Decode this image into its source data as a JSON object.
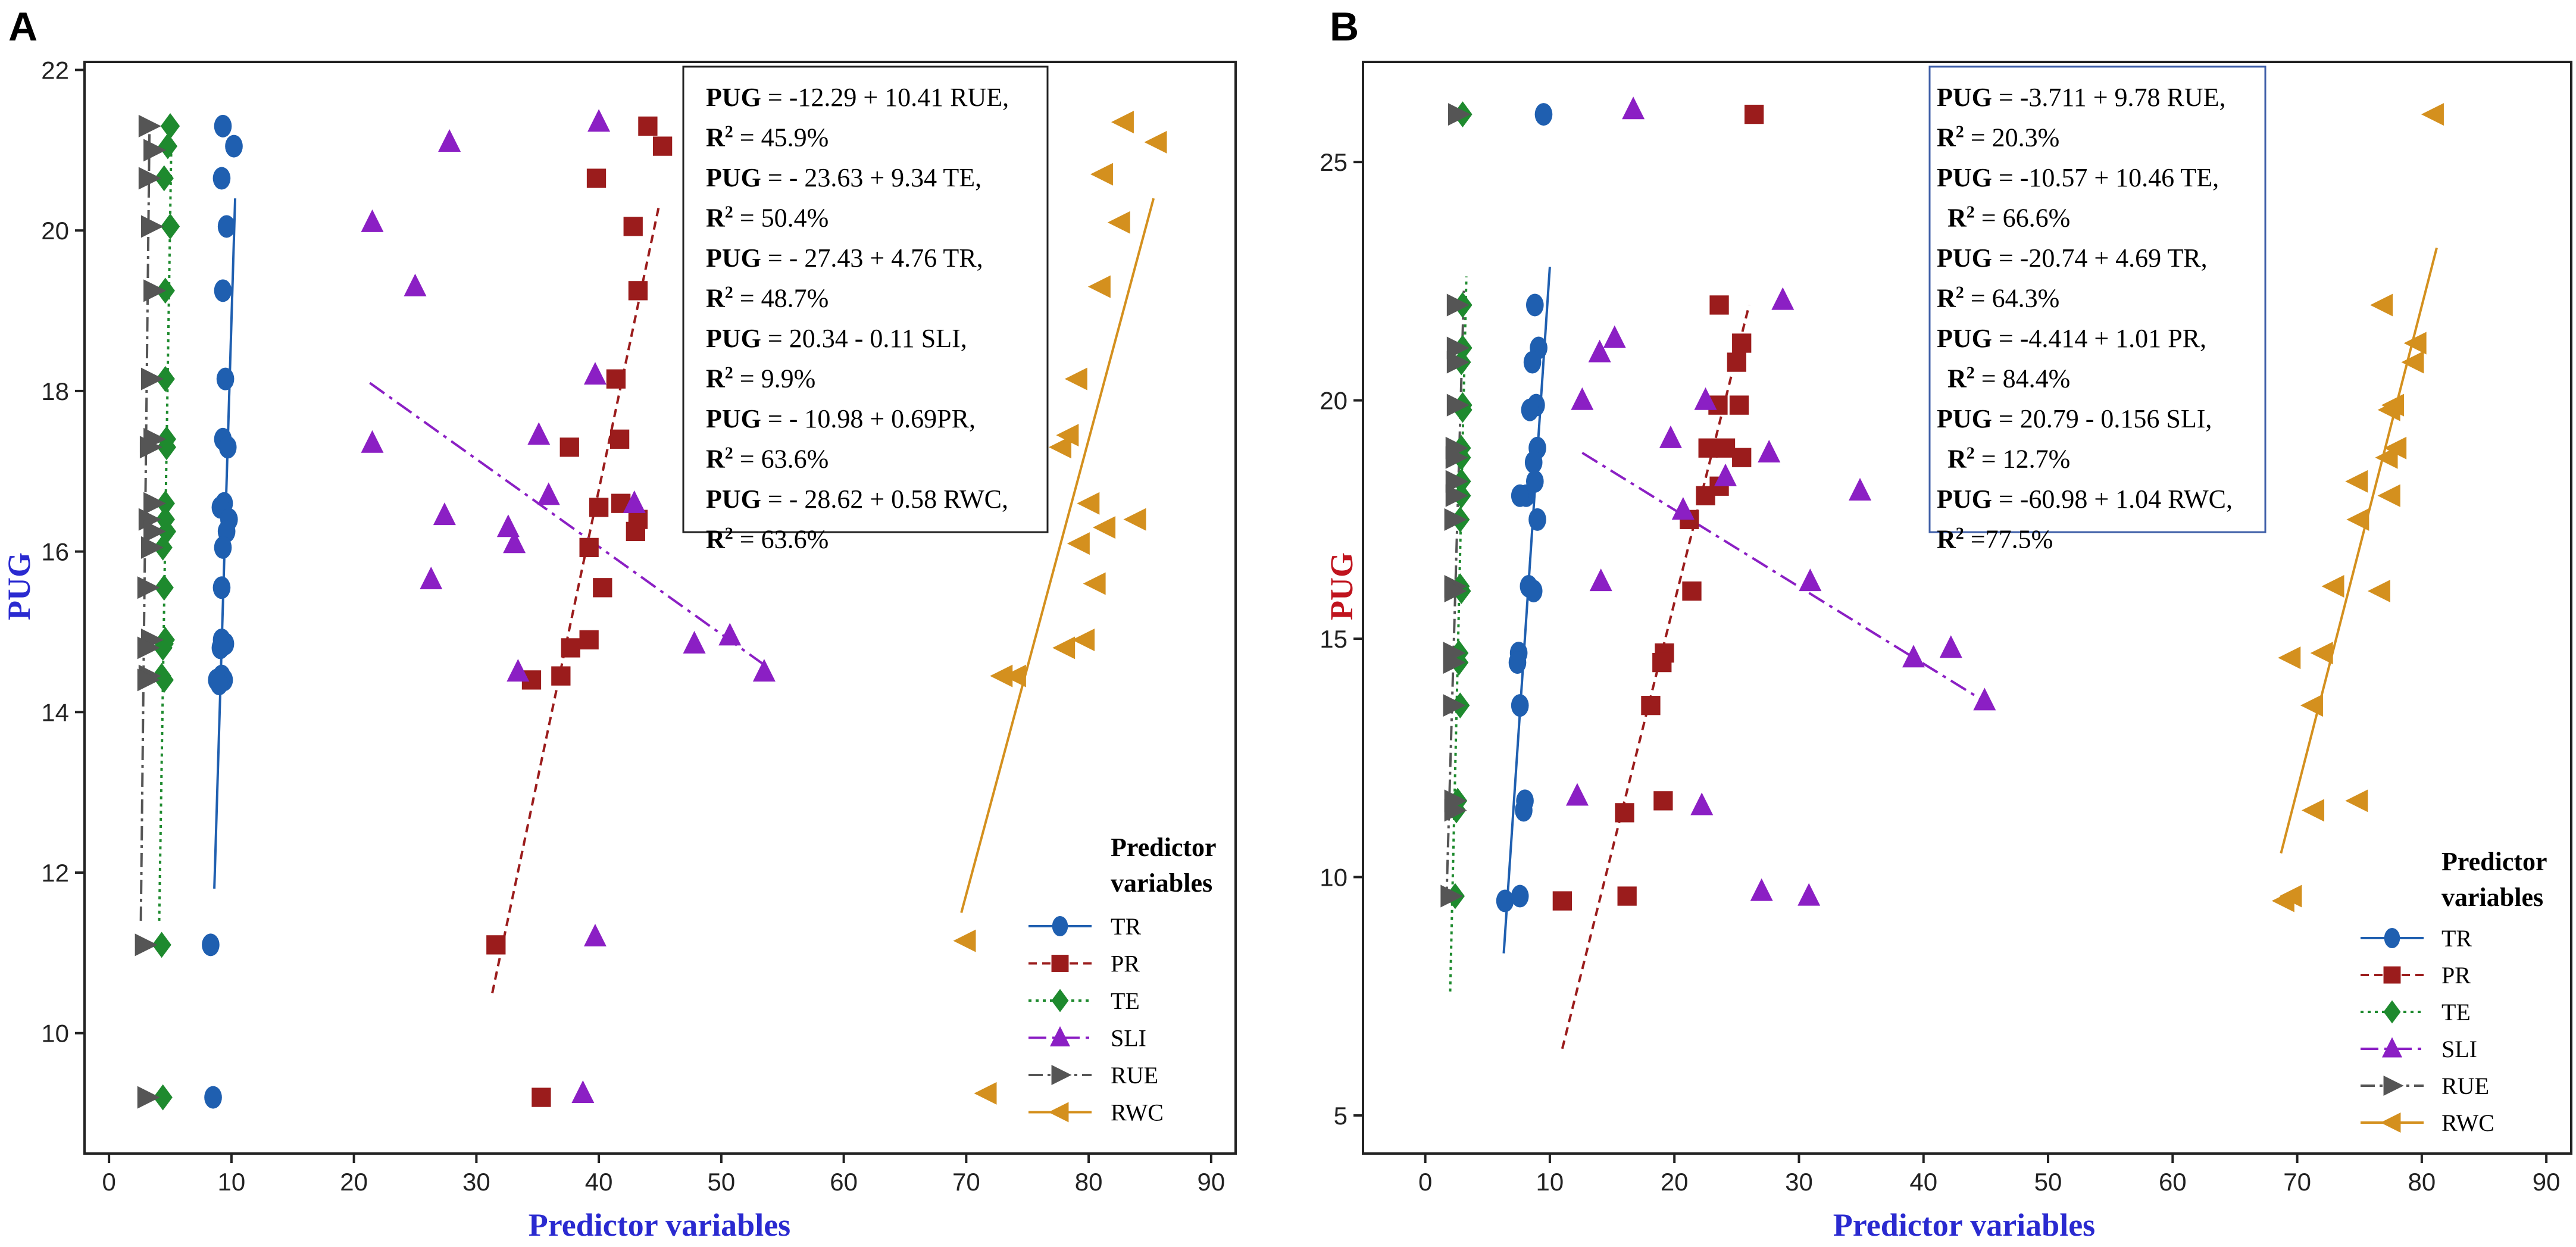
{
  "colors": {
    "TR": "#1f5fb0",
    "PR": "#9b1c1c",
    "TE": "#1e8a2e",
    "SLI": "#8b1fc4",
    "RUE": "#555555",
    "RWC": "#d4901e",
    "axis_title_blue": "#2a2ad0",
    "ylabel_red": "#c0141e",
    "eqbox_border_B": "#3f5fa8"
  },
  "chart_data": [
    {
      "panel": "A",
      "type": "scatter",
      "xlabel": "Predictor variables",
      "ylabel": "PUG",
      "xlim": [
        -2,
        92
      ],
      "ylim": [
        8.5,
        22.1
      ],
      "x_ticks": [
        0,
        10,
        20,
        30,
        40,
        50,
        60,
        70,
        80,
        90
      ],
      "y_ticks": [
        10,
        12,
        14,
        16,
        18,
        20,
        22
      ],
      "equations": [
        {
          "bold": "PUG",
          "rest": " = -12.29 + 10.41 RUE,",
          "r2": " = 45.9%"
        },
        {
          "bold": "PUG",
          "rest": " = - 23.63 + 9.34 TE,",
          "r2": " = 50.4%"
        },
        {
          "bold": "PUG",
          "rest": " = - 27.43 + 4.76 TR,",
          "r2": " = 48.7%"
        },
        {
          "bold": "PUG",
          "rest": " = 20.34 - 0.11 SLI,",
          "r2": " = 9.9%"
        },
        {
          "bold": "PUG",
          "rest": " = - 10.98 + 0.69PR,",
          "r2": " = 63.6%"
        },
        {
          "bold": "PUG",
          "rest": " = - 28.62 + 0.58 RWC,",
          "r2": " = 63.6%"
        }
      ],
      "legend_title": [
        "Predictor",
        "variables"
      ],
      "series": [
        {
          "name": "TR",
          "marker": "circle",
          "dash": "",
          "x": [
            9.3,
            10.2,
            9.2,
            9.6,
            9.3,
            9.5,
            9.3,
            9.7,
            9.4,
            9.1,
            9.8,
            9.6,
            9.3,
            9.2,
            9.2,
            9.5,
            9.1,
            9.4,
            9.2,
            8.8,
            9.0,
            8.3,
            8.5
          ],
          "y": [
            21.3,
            21.05,
            20.65,
            20.05,
            19.25,
            18.15,
            17.4,
            17.3,
            16.6,
            16.55,
            16.4,
            16.25,
            16.05,
            15.55,
            14.9,
            14.85,
            14.8,
            14.4,
            14.45,
            14.4,
            14.35,
            11.1,
            9.2
          ],
          "fit": [
            [
              8.6,
              11.8
            ],
            [
              10.3,
              20.4
            ]
          ]
        },
        {
          "name": "PR",
          "marker": "square",
          "dash": "14 9",
          "x": [
            44.0,
            45.2,
            39.8,
            42.8,
            43.2,
            41.4,
            37.6,
            41.7,
            41.8,
            43.0,
            43.2,
            40.0,
            39.2,
            40.3,
            37.7,
            39.2,
            34.5,
            36.9,
            31.6,
            35.3
          ],
          "y": [
            21.3,
            21.05,
            20.65,
            20.05,
            19.25,
            18.15,
            17.3,
            17.4,
            16.6,
            16.25,
            16.4,
            16.55,
            16.05,
            15.55,
            14.8,
            14.9,
            14.4,
            14.45,
            11.1,
            9.2
          ],
          "fit": [
            [
              31.3,
              10.5
            ],
            [
              44.9,
              20.3
            ]
          ]
        },
        {
          "name": "TE",
          "marker": "diamond",
          "dash": "5 7",
          "x": [
            5.0,
            4.8,
            4.5,
            5.0,
            4.6,
            4.6,
            4.7,
            4.7,
            4.6,
            4.6,
            4.7,
            4.4,
            4.5,
            4.6,
            4.5,
            4.4,
            4.5,
            4.3,
            4.3,
            4.4
          ],
          "y": [
            21.3,
            21.05,
            20.65,
            20.05,
            19.25,
            18.15,
            17.4,
            17.3,
            16.6,
            16.4,
            16.25,
            16.05,
            15.55,
            14.9,
            14.85,
            14.8,
            14.4,
            14.45,
            11.1,
            9.2
          ],
          "fit": [
            [
              4.1,
              11.4
            ],
            [
              5.1,
              21.2
            ]
          ]
        },
        {
          "name": "SLI",
          "marker": "triangle-up",
          "dash": "30 10 6 10",
          "x": [
            40.0,
            27.8,
            21.5,
            25.0,
            39.7,
            21.5,
            35.1,
            27.4,
            35.9,
            32.6,
            42.9,
            33.1,
            26.3,
            53.5,
            50.7,
            47.8,
            33.4,
            39.7,
            38.7
          ],
          "y": [
            21.35,
            21.1,
            20.1,
            19.3,
            18.2,
            17.35,
            17.45,
            16.45,
            16.7,
            16.3,
            16.6,
            16.1,
            15.65,
            14.5,
            14.95,
            14.85,
            14.5,
            11.2,
            9.25
          ],
          "fit": [
            [
              21.3,
              18.1
            ],
            [
              53.4,
              14.6
            ]
          ]
        },
        {
          "name": "RUE",
          "marker": "triangle-right",
          "dash": "24 8 5 8",
          "x": [
            3.2,
            3.6,
            3.2,
            3.4,
            3.6,
            3.4,
            3.6,
            3.3,
            3.6,
            3.2,
            3.6,
            3.4,
            3.1,
            3.4,
            3.1,
            3.2,
            3.1,
            2.9,
            3.1
          ],
          "y": [
            21.3,
            21.0,
            20.65,
            20.05,
            19.25,
            18.15,
            17.4,
            17.3,
            16.6,
            16.4,
            16.25,
            16.05,
            15.55,
            14.9,
            14.8,
            14.45,
            14.4,
            11.1,
            9.2
          ],
          "fit": [
            [
              2.6,
              11.4
            ],
            [
              3.3,
              21.2
            ]
          ]
        },
        {
          "name": "RWC",
          "marker": "triangle-left",
          "dash": "",
          "x": [
            82.9,
            85.6,
            81.2,
            82.6,
            81.0,
            79.1,
            78.4,
            77.8,
            80.1,
            83.9,
            81.4,
            79.3,
            80.6,
            79.7,
            78.1,
            74.1,
            73.0,
            70.0,
            71.7
          ],
          "y": [
            21.35,
            21.1,
            20.7,
            20.1,
            19.3,
            18.15,
            17.45,
            17.3,
            16.6,
            16.4,
            16.3,
            16.1,
            15.6,
            14.9,
            14.8,
            14.45,
            14.45,
            11.15,
            9.25
          ],
          "fit": [
            [
              69.6,
              11.5
            ],
            [
              85.3,
              20.4
            ]
          ]
        }
      ]
    },
    {
      "panel": "B",
      "type": "scatter",
      "xlabel": "Predictor variables",
      "ylabel": "PUG",
      "xlim": [
        -5,
        92
      ],
      "ylim": [
        4.2,
        27.1
      ],
      "x_ticks": [
        0,
        10,
        20,
        30,
        40,
        50,
        60,
        70,
        80,
        90
      ],
      "y_ticks": [
        5,
        10,
        15,
        20,
        25
      ],
      "equations": [
        {
          "bold": "PUG",
          "rest": " = -3.711 + 9.78 RUE,",
          "r2": " = 20.3%"
        },
        {
          "bold": "PUG",
          "rest": " = -10.57 + 10.46 TE,",
          "r2": " = 66.6%"
        },
        {
          "bold": "PUG",
          "rest": " = -20.74 + 4.69 TR,",
          "r2": " = 64.3%"
        },
        {
          "bold": "PUG",
          "rest": " = -4.414 + 1.01 PR,",
          "r2": " = 84.4%"
        },
        {
          "bold": "PUG",
          "rest": " = 20.79 - 0.156 SLI,",
          "r2": " = 12.7%"
        },
        {
          "bold": "PUG",
          "rest": " = -60.98 + 1.04 RWC,",
          "r2": " =77.5%"
        }
      ],
      "legend_title": [
        "Predictor",
        "variables"
      ],
      "series": [
        {
          "name": "TR",
          "marker": "circle",
          "dash": "",
          "x": [
            9.5,
            8.8,
            9.1,
            8.6,
            8.9,
            8.4,
            9.0,
            8.7,
            8.8,
            8.1,
            9.0,
            7.6,
            8.3,
            8.7,
            7.5,
            7.4,
            7.6,
            8.0,
            7.9,
            6.4,
            7.6
          ],
          "y": [
            26.0,
            22.0,
            21.1,
            20.8,
            19.9,
            19.8,
            19.0,
            18.7,
            18.3,
            18.0,
            17.5,
            18.0,
            16.1,
            16.0,
            14.7,
            14.5,
            13.6,
            11.6,
            11.4,
            9.5,
            9.6
          ],
          "fit": [
            [
              6.3,
              8.4
            ],
            [
              10.0,
              22.8
            ]
          ]
        },
        {
          "name": "PR",
          "marker": "square",
          "dash": "14 9",
          "x": [
            26.4,
            23.6,
            25.4,
            25.0,
            23.5,
            25.2,
            24.1,
            22.7,
            25.4,
            23.6,
            22.5,
            21.2,
            21.4,
            19.2,
            19.0,
            18.1,
            16.0,
            19.1,
            11.0,
            16.2
          ],
          "y": [
            26.0,
            22.0,
            21.2,
            20.8,
            19.9,
            19.9,
            19.0,
            19.0,
            18.8,
            18.2,
            18.0,
            17.5,
            16.0,
            14.7,
            14.5,
            13.6,
            11.35,
            11.6,
            9.5,
            9.6
          ],
          "fit": [
            [
              11.0,
              6.4
            ],
            [
              26.0,
              22.0
            ]
          ]
        },
        {
          "name": "TE",
          "marker": "diamond",
          "dash": "5 7",
          "x": [
            3.0,
            3.0,
            3.0,
            2.9,
            3.0,
            3.0,
            2.9,
            2.9,
            2.9,
            2.9,
            2.8,
            2.8,
            2.9,
            2.7,
            2.7,
            2.8,
            2.6,
            2.5,
            2.4
          ],
          "y": [
            26.0,
            22.0,
            21.1,
            20.8,
            19.9,
            19.8,
            19.0,
            18.8,
            18.3,
            18.0,
            17.5,
            16.1,
            16.0,
            14.7,
            14.5,
            13.6,
            11.6,
            11.4,
            9.6
          ],
          "fit": [
            [
              2.0,
              7.6
            ],
            [
              3.3,
              22.6
            ]
          ]
        },
        {
          "name": "SLI",
          "marker": "triangle-up",
          "dash": "30 10 6 10",
          "x": [
            16.7,
            28.7,
            15.2,
            14.0,
            12.6,
            22.5,
            19.7,
            27.6,
            24.1,
            34.9,
            20.7,
            14.1,
            30.9,
            42.2,
            39.2,
            44.9,
            12.2,
            22.2,
            27.0,
            30.8
          ],
          "y": [
            26.1,
            22.1,
            21.3,
            21.0,
            20.0,
            20.0,
            19.2,
            18.9,
            18.4,
            18.1,
            17.7,
            16.2,
            16.2,
            14.8,
            14.6,
            13.7,
            11.7,
            11.5,
            9.7,
            9.6
          ],
          "fit": [
            [
              12.6,
              18.9
            ],
            [
              44.8,
              13.7
            ]
          ]
        },
        {
          "name": "RUE",
          "marker": "triangle-right",
          "dash": "24 8 5 8",
          "x": [
            2.6,
            2.5,
            2.5,
            2.5,
            2.5,
            2.4,
            2.4,
            2.4,
            2.4,
            2.3,
            2.3,
            2.3,
            2.2,
            2.2,
            2.2,
            2.3,
            2.3,
            2.0
          ],
          "y": [
            26.0,
            22.0,
            21.1,
            20.8,
            19.9,
            19.0,
            18.8,
            18.3,
            18.0,
            17.5,
            16.1,
            16.0,
            14.7,
            14.5,
            13.6,
            11.6,
            11.4,
            9.6
          ],
          "fit": [
            [
              1.7,
              9.5
            ],
            [
              3.1,
              22.3
            ]
          ]
        },
        {
          "name": "RWC",
          "marker": "triangle-left",
          "dash": "",
          "x": [
            81.0,
            76.9,
            79.6,
            79.4,
            77.8,
            77.5,
            78.0,
            77.3,
            77.5,
            74.9,
            77.5,
            75.0,
            76.7,
            73.0,
            69.5,
            72.1,
            71.3,
            74.9,
            71.4,
            69.0,
            69.6
          ],
          "y": [
            26.0,
            22.0,
            21.2,
            20.8,
            19.9,
            19.8,
            19.0,
            18.8,
            18.0,
            18.3,
            18.0,
            17.5,
            16.0,
            16.1,
            14.6,
            14.7,
            13.6,
            11.6,
            11.4,
            9.5,
            9.6
          ],
          "fit": [
            [
              68.7,
              10.5
            ],
            [
              81.2,
              23.2
            ]
          ]
        }
      ]
    }
  ]
}
